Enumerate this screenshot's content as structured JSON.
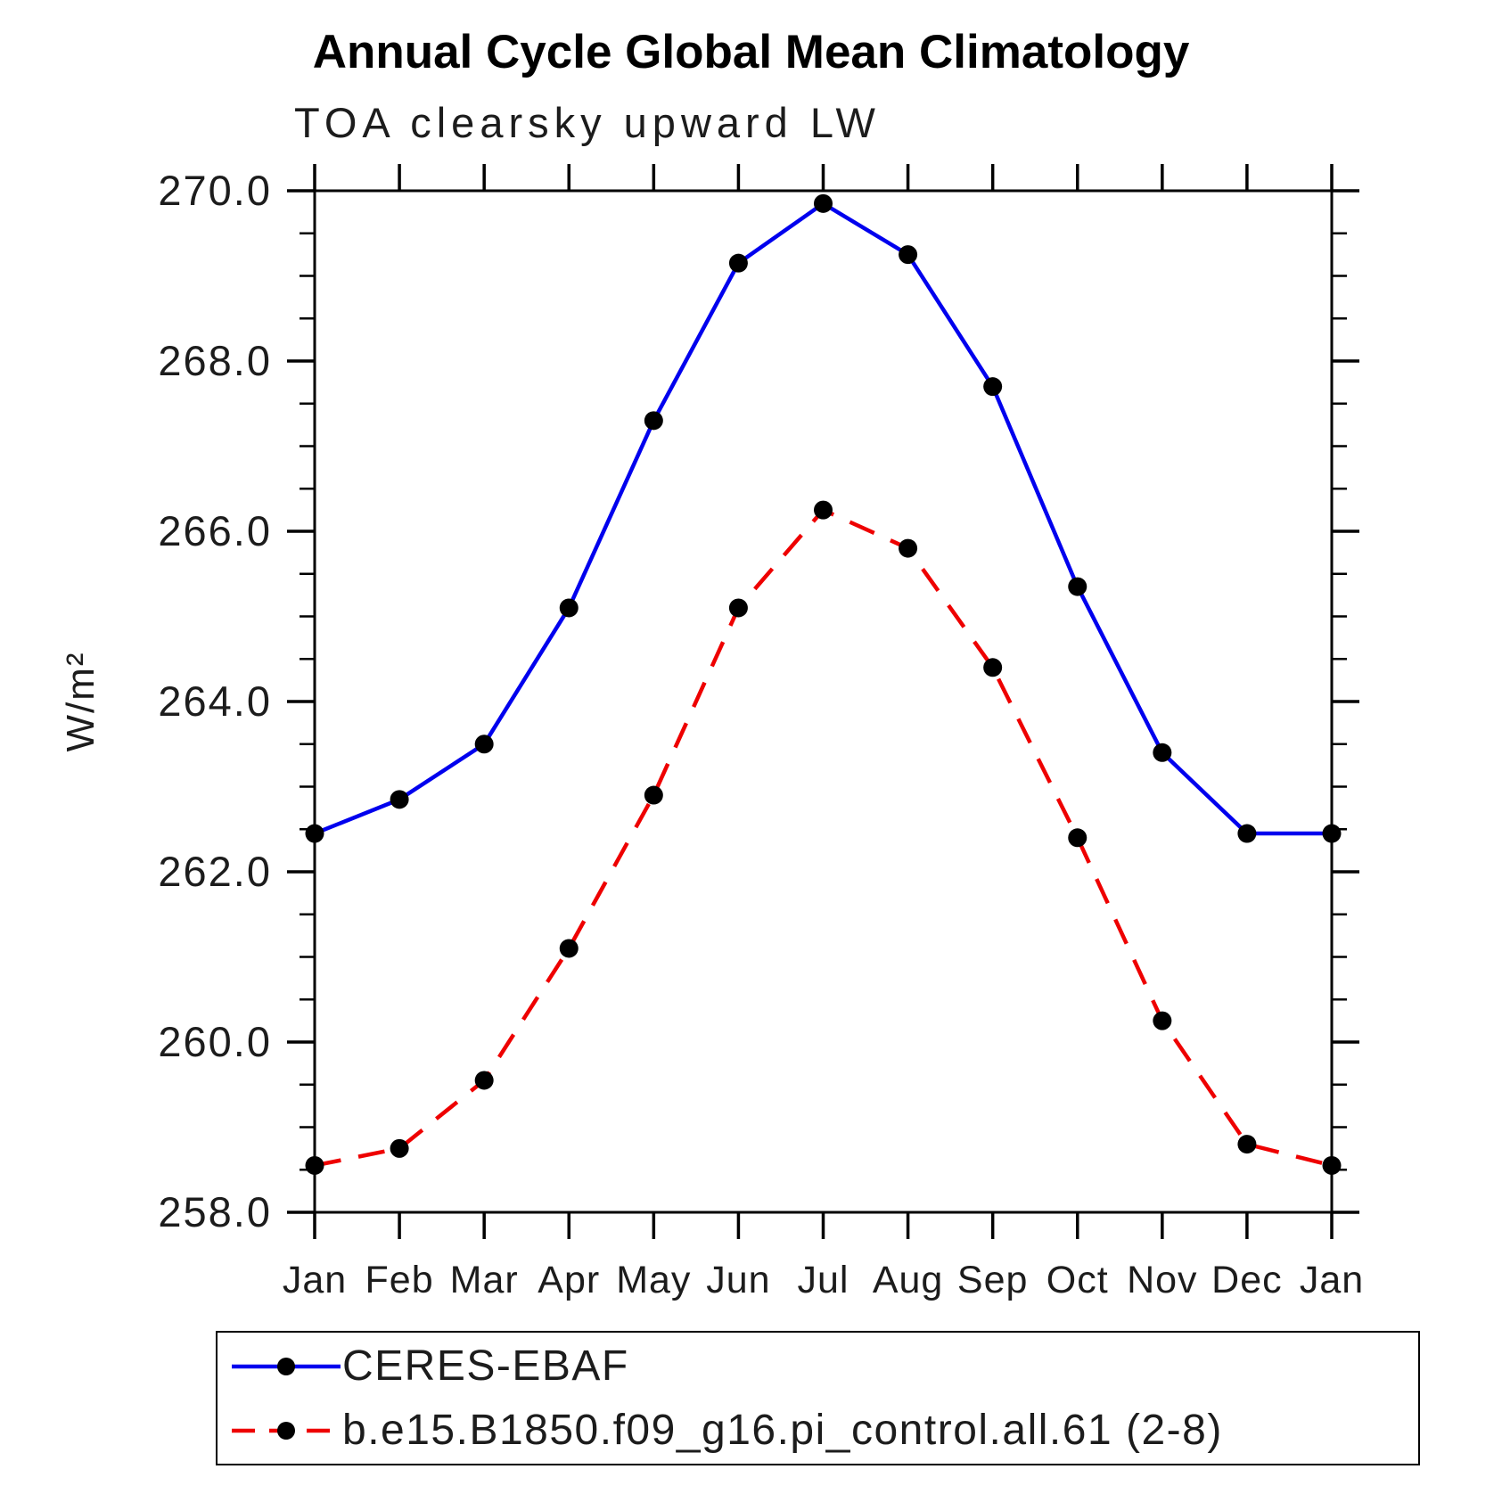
{
  "title": "Annual Cycle Global Mean Climatology",
  "subtitle": "TOA clearsky upward LW",
  "ylabel": "W/m²",
  "chart_data": {
    "type": "line",
    "x_categories": [
      "Jan",
      "Feb",
      "Mar",
      "Apr",
      "May",
      "Jun",
      "Jul",
      "Aug",
      "Sep",
      "Oct",
      "Nov",
      "Dec",
      "Jan"
    ],
    "series": [
      {
        "name": "CERES-EBAF",
        "color": "#0000ee",
        "line_style": "solid",
        "marker": "circle",
        "marker_color": "#000000",
        "values": [
          262.45,
          262.85,
          263.5,
          265.1,
          267.3,
          269.15,
          269.85,
          269.25,
          267.7,
          265.35,
          263.4,
          262.45,
          262.45
        ]
      },
      {
        "name": "b.e15.B1850.f09_g16.pi_control.all.61 (2-8)",
        "color": "#ee0000",
        "line_style": "dashed",
        "marker": "circle",
        "marker_color": "#000000",
        "values": [
          258.55,
          258.75,
          259.55,
          261.1,
          262.9,
          265.1,
          266.25,
          265.8,
          264.4,
          262.4,
          260.25,
          258.8,
          258.55
        ]
      }
    ],
    "ylim": [
      258.0,
      270.0
    ],
    "ytick_major": 2.0,
    "ytick_minor": 0.5,
    "ytick_labels": [
      "258.0",
      "260.0",
      "262.0",
      "264.0",
      "266.0",
      "268.0",
      "270.0"
    ],
    "grid": "off",
    "legend_position": "bottom",
    "frame": "box-with-outward-ticks"
  }
}
